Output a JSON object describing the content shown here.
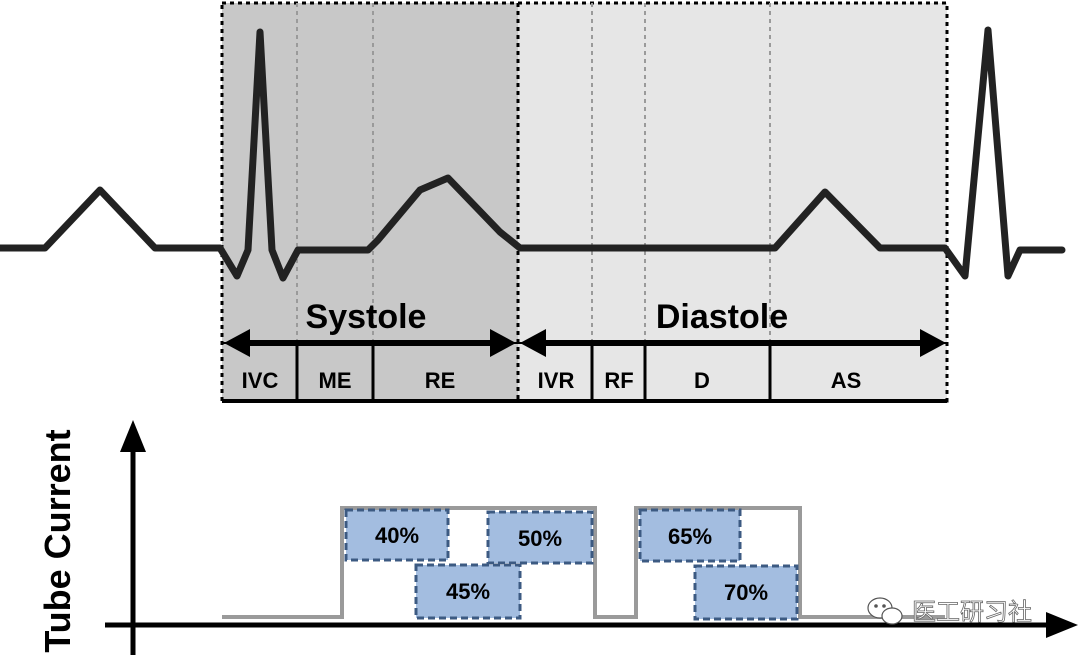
{
  "diagram": {
    "systole_label": "Systole",
    "diastole_label": "Diastole",
    "phases": [
      {
        "id": "ivc",
        "label": "IVC"
      },
      {
        "id": "me",
        "label": "ME"
      },
      {
        "id": "re",
        "label": "RE"
      },
      {
        "id": "ivr",
        "label": "IVR"
      },
      {
        "id": "rf",
        "label": "RF"
      },
      {
        "id": "d",
        "label": "D"
      },
      {
        "id": "as",
        "label": "AS"
      }
    ],
    "tube_current_axis_label": "Tube Current",
    "windows": [
      {
        "id": "w40",
        "label": "40%"
      },
      {
        "id": "w45",
        "label": "45%"
      },
      {
        "id": "w50",
        "label": "50%"
      },
      {
        "id": "w65",
        "label": "65%"
      },
      {
        "id": "w70",
        "label": "70%"
      }
    ],
    "colors": {
      "systole_shade": "#c8c8c8",
      "diastole_shade": "#e6e6e6",
      "window_fill": "#a3bde0",
      "window_border": "#3c5a82",
      "tube_line": "#9a9a9a"
    }
  },
  "watermark": {
    "icon": "wechat-icon",
    "text": "医工研习社"
  }
}
